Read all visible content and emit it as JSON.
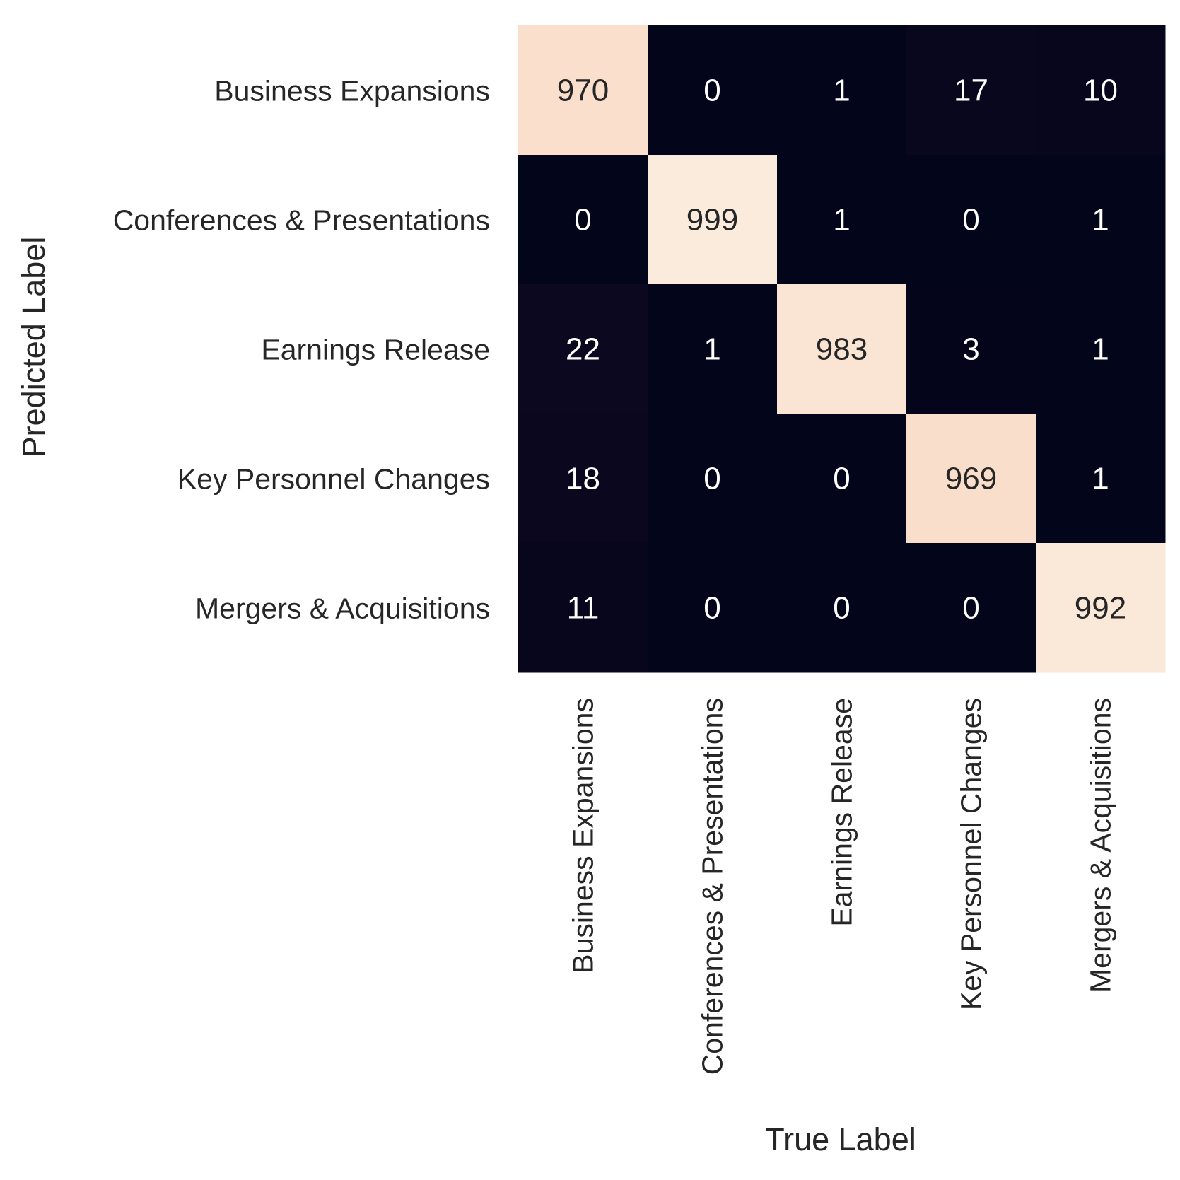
{
  "chart_data": {
    "type": "heatmap",
    "title": "",
    "xlabel": "True Label",
    "ylabel": "Predicted Label",
    "x_categories": [
      "Business Expansions",
      "Conferences & Presentations",
      "Earnings Release",
      "Key Personnel Changes",
      "Mergers & Acquisitions"
    ],
    "y_categories": [
      "Business Expansions",
      "Conferences & Presentations",
      "Earnings Release",
      "Key Personnel Changes",
      "Mergers & Acquisitions"
    ],
    "values": [
      [
        970,
        0,
        1,
        17,
        10
      ],
      [
        0,
        999,
        1,
        0,
        1
      ],
      [
        22,
        1,
        983,
        3,
        1
      ],
      [
        18,
        0,
        0,
        969,
        1
      ],
      [
        11,
        0,
        0,
        0,
        992
      ]
    ],
    "colorbar": false,
    "annotated": true,
    "colormap": "rocket",
    "colors": {
      "low": "#03051a",
      "high": "#faebdd",
      "text_dark": "#262626",
      "text_light": "#ffffff"
    }
  }
}
